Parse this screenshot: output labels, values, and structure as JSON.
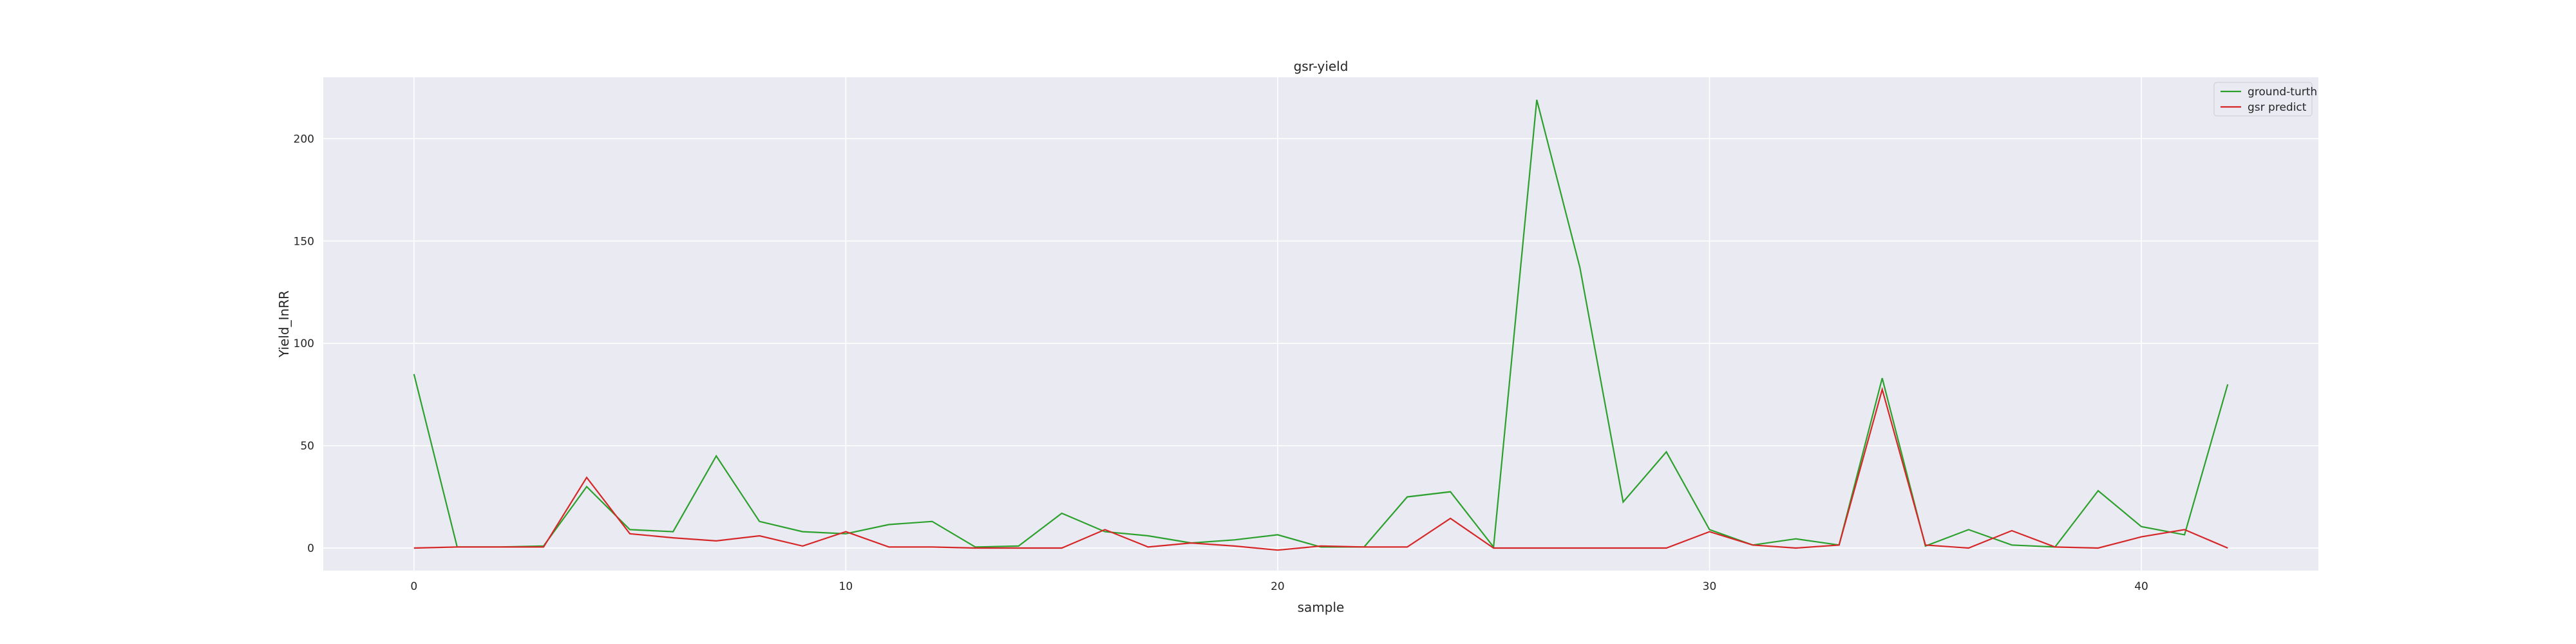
{
  "chart_data": {
    "type": "line",
    "title": "gsr-yield",
    "xlabel": "sample",
    "ylabel": "Yield_InRR",
    "xlim": [
      -2.1,
      44.1
    ],
    "ylim": [
      -11,
      230
    ],
    "x_ticks": [
      0,
      10,
      20,
      30,
      40
    ],
    "y_ticks": [
      0,
      50,
      100,
      150,
      200
    ],
    "grid": true,
    "legend_position": "top-right",
    "x": [
      0,
      1,
      2,
      3,
      4,
      5,
      6,
      7,
      8,
      9,
      10,
      11,
      12,
      13,
      14,
      15,
      16,
      17,
      18,
      19,
      20,
      21,
      22,
      23,
      24,
      25,
      26,
      27,
      28,
      29,
      30,
      31,
      32,
      33,
      34,
      35,
      36,
      37,
      38,
      39,
      40,
      41,
      42
    ],
    "series": [
      {
        "name": "ground-turth",
        "color": "#2ca02c",
        "values": [
          85,
          0.5,
          0.5,
          1,
          30,
          9,
          8,
          45,
          13,
          8,
          7,
          11.5,
          13,
          0.5,
          1,
          17,
          8,
          6,
          2.5,
          4,
          6.5,
          0.5,
          0.5,
          25,
          27.5,
          0.5,
          219,
          137,
          22.5,
          47,
          9,
          1.5,
          4.5,
          1.5,
          83,
          1,
          9,
          1.5,
          0.5,
          28,
          10.5,
          6.5,
          80
        ]
      },
      {
        "name": "gsr predict",
        "color": "#d62728",
        "values": [
          0,
          0.5,
          0.5,
          0.5,
          34.5,
          7,
          5,
          3.5,
          6,
          1,
          8,
          0.5,
          0.5,
          0,
          0,
          0,
          9,
          0.5,
          2.5,
          1,
          -1,
          1,
          0.5,
          0.5,
          14.5,
          0,
          0,
          0,
          0,
          0,
          8,
          1.5,
          0,
          1.5,
          77.5,
          1.5,
          0,
          8.5,
          0.5,
          0,
          5.5,
          9,
          0
        ]
      }
    ],
    "colors": {
      "plot_background": "#eaeaf2",
      "grid": "#ffffff"
    }
  }
}
